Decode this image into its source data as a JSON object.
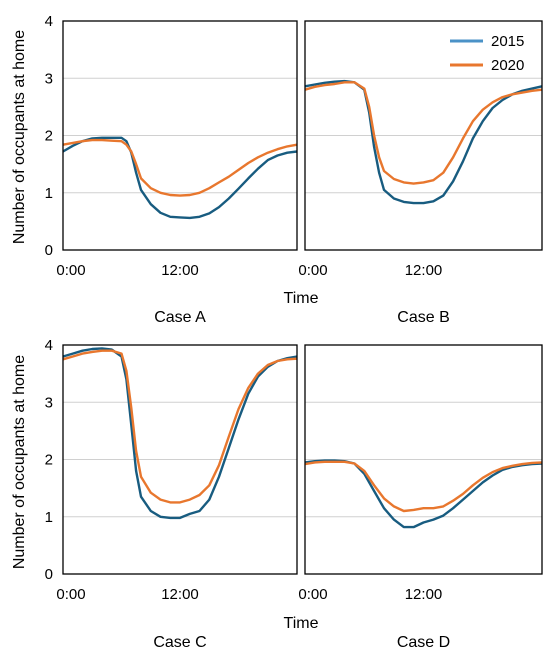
{
  "figure": {
    "ylabel": "Number of occupants at home",
    "xlabel": "Time"
  },
  "legend": {
    "entries": [
      {
        "label": "2015",
        "color": "#185C80"
      },
      {
        "label": "2020",
        "color": "#E8772E"
      }
    ],
    "legend_icon_2015": "#4A92C7",
    "placement": "top-right of Case B panel"
  },
  "chart_data": [
    {
      "type": "line",
      "panel": "Case A",
      "title": "Case A",
      "xlim": [
        0,
        24
      ],
      "ylim": [
        0,
        4
      ],
      "x_ticks": [
        {
          "value": 0,
          "label": "0:00"
        },
        {
          "value": 12,
          "label": "12:00"
        }
      ],
      "y_ticks": [
        0,
        1,
        2,
        3,
        4
      ],
      "grid": "horizontal",
      "series": [
        {
          "name": "2015",
          "color": "#185C80",
          "points": [
            [
              0,
              1.72
            ],
            [
              1,
              1.82
            ],
            [
              2,
              1.9
            ],
            [
              3,
              1.95
            ],
            [
              4,
              1.96
            ],
            [
              5,
              1.96
            ],
            [
              6,
              1.96
            ],
            [
              6.5,
              1.9
            ],
            [
              7,
              1.7
            ],
            [
              7.5,
              1.35
            ],
            [
              8,
              1.05
            ],
            [
              9,
              0.8
            ],
            [
              10,
              0.65
            ],
            [
              11,
              0.58
            ],
            [
              12,
              0.57
            ],
            [
              13,
              0.56
            ],
            [
              14,
              0.58
            ],
            [
              15,
              0.64
            ],
            [
              16,
              0.75
            ],
            [
              17,
              0.9
            ],
            [
              18,
              1.07
            ],
            [
              19,
              1.25
            ],
            [
              20,
              1.42
            ],
            [
              21,
              1.57
            ],
            [
              22,
              1.65
            ],
            [
              23,
              1.7
            ],
            [
              24,
              1.72
            ]
          ]
        },
        {
          "name": "2020",
          "color": "#E8772E",
          "points": [
            [
              0,
              1.84
            ],
            [
              1,
              1.87
            ],
            [
              2,
              1.9
            ],
            [
              3,
              1.92
            ],
            [
              4,
              1.92
            ],
            [
              5,
              1.91
            ],
            [
              6,
              1.9
            ],
            [
              6.5,
              1.84
            ],
            [
              7,
              1.72
            ],
            [
              7.5,
              1.5
            ],
            [
              8,
              1.25
            ],
            [
              9,
              1.08
            ],
            [
              10,
              1.0
            ],
            [
              11,
              0.96
            ],
            [
              12,
              0.95
            ],
            [
              13,
              0.96
            ],
            [
              14,
              1.0
            ],
            [
              15,
              1.08
            ],
            [
              16,
              1.18
            ],
            [
              17,
              1.28
            ],
            [
              18,
              1.4
            ],
            [
              19,
              1.52
            ],
            [
              20,
              1.62
            ],
            [
              21,
              1.7
            ],
            [
              22,
              1.76
            ],
            [
              23,
              1.81
            ],
            [
              24,
              1.84
            ]
          ]
        }
      ]
    },
    {
      "type": "line",
      "panel": "Case B",
      "title": "Case B",
      "xlim": [
        0,
        24
      ],
      "ylim": [
        0,
        4
      ],
      "x_ticks": [
        {
          "value": 0,
          "label": "0:00"
        },
        {
          "value": 12,
          "label": "12:00"
        }
      ],
      "y_ticks": [
        0,
        1,
        2,
        3,
        4
      ],
      "grid": "horizontal",
      "series": [
        {
          "name": "2015",
          "color": "#185C80",
          "points": [
            [
              0,
              2.86
            ],
            [
              1,
              2.89
            ],
            [
              2,
              2.92
            ],
            [
              3,
              2.94
            ],
            [
              4,
              2.95
            ],
            [
              5,
              2.93
            ],
            [
              6,
              2.8
            ],
            [
              6.5,
              2.4
            ],
            [
              7,
              1.8
            ],
            [
              7.5,
              1.35
            ],
            [
              8,
              1.05
            ],
            [
              9,
              0.9
            ],
            [
              10,
              0.84
            ],
            [
              11,
              0.82
            ],
            [
              12,
              0.82
            ],
            [
              13,
              0.85
            ],
            [
              14,
              0.95
            ],
            [
              15,
              1.2
            ],
            [
              16,
              1.55
            ],
            [
              17,
              1.95
            ],
            [
              18,
              2.25
            ],
            [
              19,
              2.48
            ],
            [
              20,
              2.62
            ],
            [
              21,
              2.72
            ],
            [
              22,
              2.78
            ],
            [
              23,
              2.82
            ],
            [
              24,
              2.86
            ]
          ]
        },
        {
          "name": "2020",
          "color": "#E8772E",
          "points": [
            [
              0,
              2.8
            ],
            [
              1,
              2.85
            ],
            [
              2,
              2.88
            ],
            [
              3,
              2.9
            ],
            [
              4,
              2.93
            ],
            [
              5,
              2.93
            ],
            [
              6,
              2.82
            ],
            [
              6.5,
              2.5
            ],
            [
              7,
              2.0
            ],
            [
              7.5,
              1.62
            ],
            [
              8,
              1.38
            ],
            [
              9,
              1.24
            ],
            [
              10,
              1.18
            ],
            [
              11,
              1.16
            ],
            [
              12,
              1.18
            ],
            [
              13,
              1.22
            ],
            [
              14,
              1.35
            ],
            [
              15,
              1.62
            ],
            [
              16,
              1.95
            ],
            [
              17,
              2.25
            ],
            [
              18,
              2.45
            ],
            [
              19,
              2.58
            ],
            [
              20,
              2.67
            ],
            [
              21,
              2.72
            ],
            [
              22,
              2.75
            ],
            [
              23,
              2.78
            ],
            [
              24,
              2.8
            ]
          ]
        }
      ]
    },
    {
      "type": "line",
      "panel": "Case C",
      "title": "Case C",
      "xlim": [
        0,
        24
      ],
      "ylim": [
        0,
        4
      ],
      "x_ticks": [
        {
          "value": 0,
          "label": "0:00"
        },
        {
          "value": 12,
          "label": "12:00"
        }
      ],
      "y_ticks": [
        0,
        1,
        2,
        3,
        4
      ],
      "grid": "horizontal",
      "series": [
        {
          "name": "2015",
          "color": "#185C80",
          "points": [
            [
              0,
              3.8
            ],
            [
              1,
              3.85
            ],
            [
              2,
              3.9
            ],
            [
              3,
              3.93
            ],
            [
              4,
              3.94
            ],
            [
              5,
              3.92
            ],
            [
              6,
              3.8
            ],
            [
              6.5,
              3.4
            ],
            [
              7,
              2.6
            ],
            [
              7.5,
              1.8
            ],
            [
              8,
              1.35
            ],
            [
              9,
              1.1
            ],
            [
              10,
              1.0
            ],
            [
              11,
              0.98
            ],
            [
              12,
              0.98
            ],
            [
              13,
              1.05
            ],
            [
              14,
              1.1
            ],
            [
              15,
              1.3
            ],
            [
              16,
              1.7
            ],
            [
              17,
              2.2
            ],
            [
              18,
              2.7
            ],
            [
              19,
              3.15
            ],
            [
              20,
              3.45
            ],
            [
              21,
              3.62
            ],
            [
              22,
              3.72
            ],
            [
              23,
              3.77
            ],
            [
              24,
              3.8
            ]
          ]
        },
        {
          "name": "2020",
          "color": "#E8772E",
          "points": [
            [
              0,
              3.75
            ],
            [
              1,
              3.8
            ],
            [
              2,
              3.85
            ],
            [
              3,
              3.88
            ],
            [
              4,
              3.9
            ],
            [
              5,
              3.9
            ],
            [
              6,
              3.85
            ],
            [
              6.5,
              3.55
            ],
            [
              7,
              2.9
            ],
            [
              7.5,
              2.15
            ],
            [
              8,
              1.7
            ],
            [
              9,
              1.42
            ],
            [
              10,
              1.3
            ],
            [
              11,
              1.25
            ],
            [
              12,
              1.25
            ],
            [
              13,
              1.3
            ],
            [
              14,
              1.38
            ],
            [
              15,
              1.55
            ],
            [
              16,
              1.9
            ],
            [
              17,
              2.4
            ],
            [
              18,
              2.88
            ],
            [
              19,
              3.25
            ],
            [
              20,
              3.5
            ],
            [
              21,
              3.65
            ],
            [
              22,
              3.72
            ],
            [
              23,
              3.75
            ],
            [
              24,
              3.76
            ]
          ]
        }
      ]
    },
    {
      "type": "line",
      "panel": "Case D",
      "title": "Case D",
      "xlim": [
        0,
        24
      ],
      "ylim": [
        0,
        4
      ],
      "x_ticks": [
        {
          "value": 0,
          "label": "0:00"
        },
        {
          "value": 12,
          "label": "12:00"
        }
      ],
      "y_ticks": [
        0,
        1,
        2,
        3,
        4
      ],
      "grid": "horizontal",
      "series": [
        {
          "name": "2015",
          "color": "#185C80",
          "points": [
            [
              0,
              1.95
            ],
            [
              1,
              1.97
            ],
            [
              2,
              1.98
            ],
            [
              3,
              1.98
            ],
            [
              4,
              1.97
            ],
            [
              5,
              1.93
            ],
            [
              6,
              1.75
            ],
            [
              7,
              1.45
            ],
            [
              8,
              1.15
            ],
            [
              9,
              0.95
            ],
            [
              10,
              0.82
            ],
            [
              11,
              0.82
            ],
            [
              12,
              0.9
            ],
            [
              13,
              0.95
            ],
            [
              14,
              1.02
            ],
            [
              15,
              1.15
            ],
            [
              16,
              1.3
            ],
            [
              17,
              1.45
            ],
            [
              18,
              1.6
            ],
            [
              19,
              1.72
            ],
            [
              20,
              1.82
            ],
            [
              21,
              1.87
            ],
            [
              22,
              1.9
            ],
            [
              23,
              1.92
            ],
            [
              24,
              1.93
            ]
          ]
        },
        {
          "name": "2020",
          "color": "#E8772E",
          "points": [
            [
              0,
              1.92
            ],
            [
              1,
              1.95
            ],
            [
              2,
              1.96
            ],
            [
              3,
              1.96
            ],
            [
              4,
              1.96
            ],
            [
              5,
              1.93
            ],
            [
              6,
              1.8
            ],
            [
              7,
              1.55
            ],
            [
              8,
              1.32
            ],
            [
              9,
              1.18
            ],
            [
              10,
              1.1
            ],
            [
              11,
              1.12
            ],
            [
              12,
              1.15
            ],
            [
              13,
              1.15
            ],
            [
              14,
              1.18
            ],
            [
              15,
              1.28
            ],
            [
              16,
              1.4
            ],
            [
              17,
              1.55
            ],
            [
              18,
              1.68
            ],
            [
              19,
              1.78
            ],
            [
              20,
              1.85
            ],
            [
              21,
              1.89
            ],
            [
              22,
              1.92
            ],
            [
              23,
              1.94
            ],
            [
              24,
              1.95
            ]
          ]
        }
      ]
    }
  ]
}
